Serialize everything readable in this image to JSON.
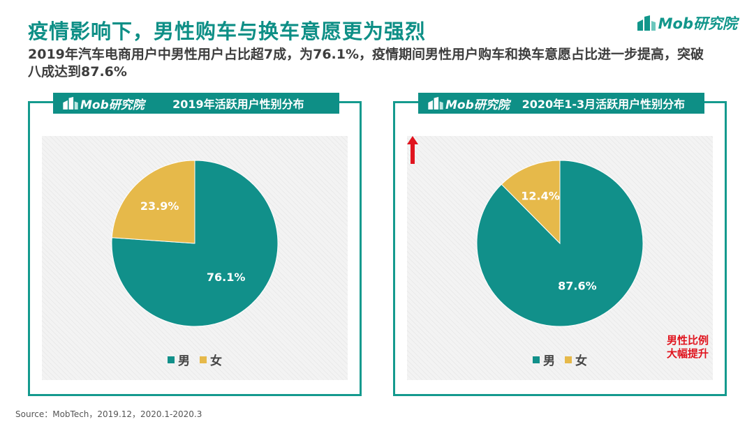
{
  "header": {
    "title": "疫情影响下，男性购车与换车意愿更为强烈",
    "subtitle": "2019年汽车电商用户中男性用户占比超7成，为76.1%，疫情期间男性用户购车和换车意愿占比进一步提高，突破八成达到87.6%",
    "brand": "Mob研究院"
  },
  "colors": {
    "male": "#11908a",
    "female": "#e6b94a",
    "accent": "#0e8f86",
    "alert": "#e0141e"
  },
  "chart_data": [
    {
      "type": "pie",
      "title": "2019年活跃用户性别分布",
      "categories": [
        "男",
        "女"
      ],
      "values": [
        76.1,
        23.9
      ],
      "labels": [
        "76.1%",
        "23.9%"
      ],
      "legend": "bottom"
    },
    {
      "type": "pie",
      "title": "2020年1-3月活跃用户性别分布",
      "categories": [
        "男",
        "女"
      ],
      "values": [
        87.6,
        12.4
      ],
      "labels": [
        "87.6%",
        "12.4%"
      ],
      "legend": "bottom",
      "annotation": "男性比例大幅提升"
    }
  ],
  "annotation_lines": [
    "男性比例",
    "大幅提升"
  ],
  "source": "Source：MobTech，2019.12，2020.1-2020.3"
}
